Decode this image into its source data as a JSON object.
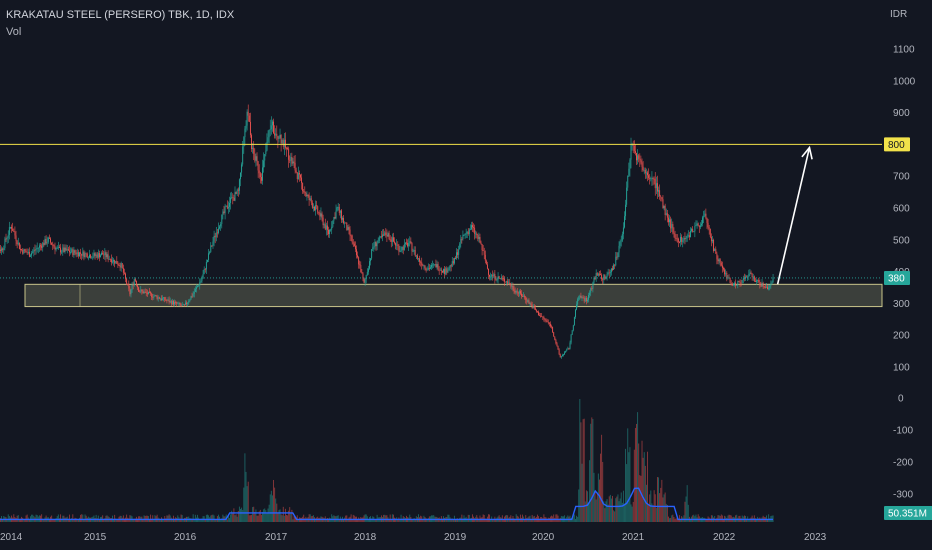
{
  "header": {
    "title": "KRAKATAU STEEL (PERSERO) TBK, 1D, IDX",
    "volume_label": "Vol",
    "currency": "IDR"
  },
  "colors": {
    "background": "#131722",
    "up": "#26a69a",
    "down": "#ef5350",
    "resistance": "#f2e24a",
    "zone_fill": "#4a4d44",
    "zone_border": "#c9c58a",
    "last_price_tag": "#26a69a",
    "volume_ma": "#2962ff",
    "arrow": "#ffffff"
  },
  "chart_data": {
    "type": "candlestick",
    "symbol": "KRAKATAU STEEL (PERSERO) TBK",
    "interval": "1D",
    "exchange": "IDX",
    "x_ticks": [
      "2014",
      "2015",
      "2016",
      "2017",
      "2018",
      "2019",
      "2020",
      "2021",
      "2022",
      "2023"
    ],
    "x_range": [
      2013.85,
      2023.2
    ],
    "price_axis": {
      "ticks": [
        1100,
        1000,
        900,
        800,
        700,
        600,
        500,
        400,
        300,
        200,
        100
      ],
      "range": [
        0,
        1220
      ]
    },
    "volume_axis": {
      "ticks": [
        0,
        -100,
        -200,
        -300
      ]
    },
    "price_path": [
      [
        2013.85,
        480
      ],
      [
        2014.0,
        470
      ],
      [
        2014.1,
        545
      ],
      [
        2014.2,
        470
      ],
      [
        2014.3,
        455
      ],
      [
        2014.5,
        500
      ],
      [
        2014.6,
        470
      ],
      [
        2014.8,
        460
      ],
      [
        2015.0,
        450
      ],
      [
        2015.1,
        455
      ],
      [
        2015.3,
        420
      ],
      [
        2015.4,
        330
      ],
      [
        2015.45,
        380
      ],
      [
        2015.5,
        340
      ],
      [
        2015.7,
        320
      ],
      [
        2015.9,
        300
      ],
      [
        2016.0,
        290
      ],
      [
        2016.1,
        330
      ],
      [
        2016.2,
        380
      ],
      [
        2016.3,
        480
      ],
      [
        2016.4,
        560
      ],
      [
        2016.5,
        620
      ],
      [
        2016.6,
        650
      ],
      [
        2016.65,
        800
      ],
      [
        2016.7,
        900
      ],
      [
        2016.75,
        780
      ],
      [
        2016.85,
        700
      ],
      [
        2016.95,
        860
      ],
      [
        2017.05,
        830
      ],
      [
        2017.2,
        740
      ],
      [
        2017.35,
        640
      ],
      [
        2017.5,
        580
      ],
      [
        2017.6,
        520
      ],
      [
        2017.7,
        600
      ],
      [
        2017.85,
        510
      ],
      [
        2017.95,
        420
      ],
      [
        2018.0,
        360
      ],
      [
        2018.1,
        480
      ],
      [
        2018.25,
        520
      ],
      [
        2018.4,
        470
      ],
      [
        2018.5,
        490
      ],
      [
        2018.6,
        440
      ],
      [
        2018.7,
        410
      ],
      [
        2018.8,
        420
      ],
      [
        2018.9,
        400
      ],
      [
        2019.0,
        430
      ],
      [
        2019.1,
        510
      ],
      [
        2019.2,
        540
      ],
      [
        2019.3,
        490
      ],
      [
        2019.4,
        390
      ],
      [
        2019.5,
        380
      ],
      [
        2019.6,
        370
      ],
      [
        2019.7,
        340
      ],
      [
        2019.8,
        320
      ],
      [
        2019.95,
        270
      ],
      [
        2020.1,
        230
      ],
      [
        2020.2,
        130
      ],
      [
        2020.3,
        160
      ],
      [
        2020.4,
        320
      ],
      [
        2020.5,
        310
      ],
      [
        2020.6,
        390
      ],
      [
        2020.7,
        380
      ],
      [
        2020.8,
        420
      ],
      [
        2020.9,
        520
      ],
      [
        2020.95,
        700
      ],
      [
        2021.0,
        820
      ],
      [
        2021.05,
        760
      ],
      [
        2021.15,
        710
      ],
      [
        2021.25,
        680
      ],
      [
        2021.4,
        560
      ],
      [
        2021.5,
        500
      ],
      [
        2021.6,
        510
      ],
      [
        2021.7,
        540
      ],
      [
        2021.8,
        570
      ],
      [
        2021.85,
        530
      ],
      [
        2021.9,
        470
      ],
      [
        2022.0,
        400
      ],
      [
        2022.1,
        360
      ],
      [
        2022.2,
        370
      ],
      [
        2022.3,
        390
      ],
      [
        2022.4,
        360
      ],
      [
        2022.5,
        350
      ],
      [
        2022.55,
        380
      ]
    ],
    "volume_peaks": [
      {
        "x": 2016.68,
        "v": 0.55
      },
      {
        "x": 2017.0,
        "v": 0.35
      },
      {
        "x": 2016.95,
        "v": 0.25
      },
      {
        "x": 2020.45,
        "v": 1.0
      },
      {
        "x": 2020.55,
        "v": 0.85
      },
      {
        "x": 2020.65,
        "v": 0.75
      },
      {
        "x": 2020.95,
        "v": 0.85
      },
      {
        "x": 2021.05,
        "v": 0.98
      },
      {
        "x": 2021.1,
        "v": 0.7
      },
      {
        "x": 2021.15,
        "v": 0.55
      },
      {
        "x": 2021.3,
        "v": 0.35
      },
      {
        "x": 2021.6,
        "v": 0.3
      }
    ],
    "annotations": {
      "resistance_level": 800,
      "resistance_label": "800",
      "support_zone": [
        290,
        360
      ],
      "last_price": 380,
      "last_price_label": "380",
      "volume_label": "50.351M",
      "arrow_from": {
        "x": 2022.6,
        "price": 360
      },
      "arrow_to": {
        "x": 2022.95,
        "price": 790
      }
    }
  }
}
